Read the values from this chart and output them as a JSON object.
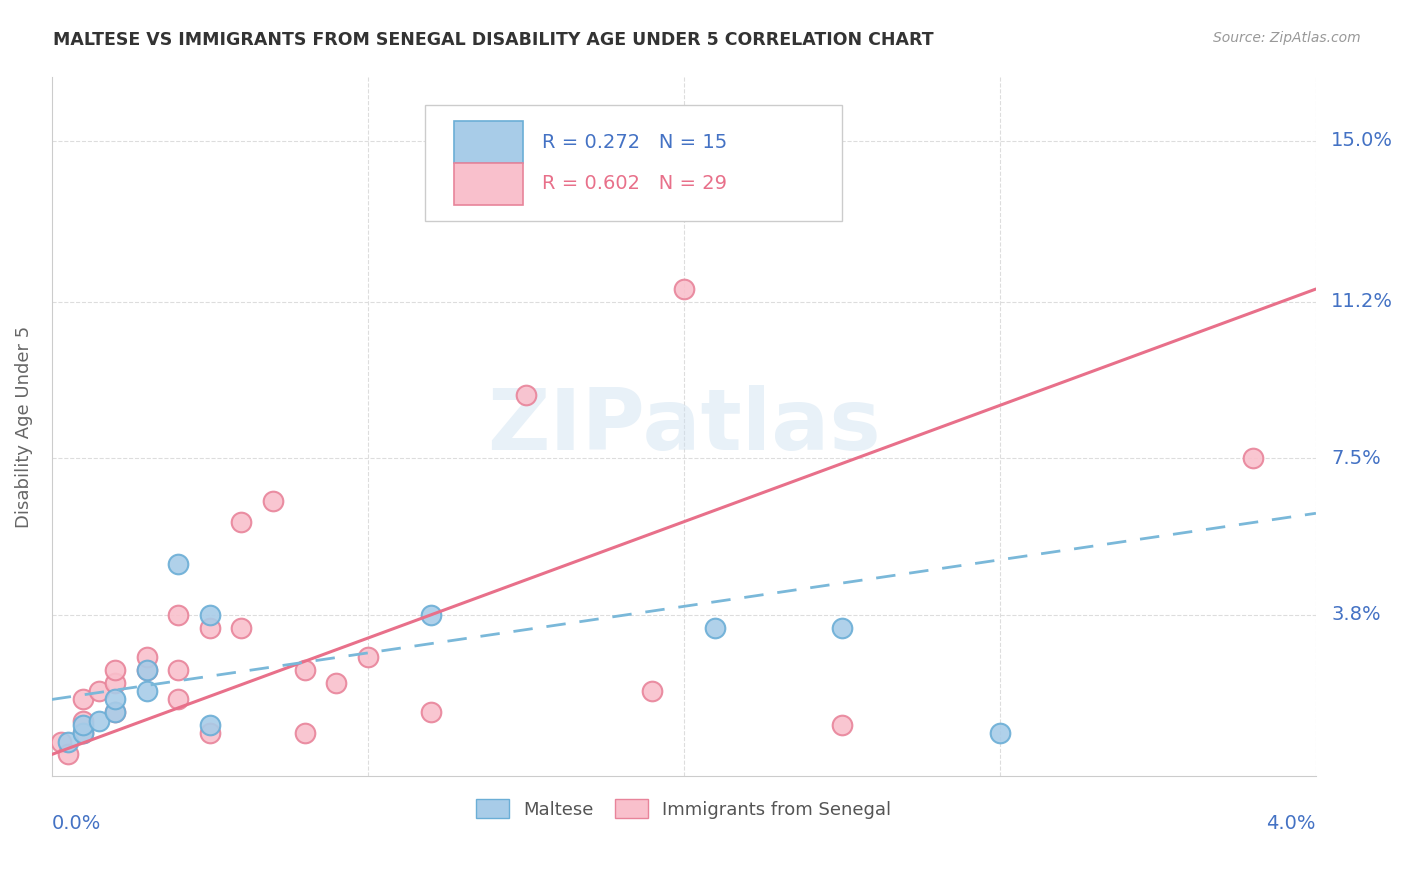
{
  "title": "MALTESE VS IMMIGRANTS FROM SENEGAL DISABILITY AGE UNDER 5 CORRELATION CHART",
  "source": "Source: ZipAtlas.com",
  "ylabel": "Disability Age Under 5",
  "ytick_labels": [
    "3.8%",
    "7.5%",
    "11.2%",
    "15.0%"
  ],
  "ytick_values": [
    0.038,
    0.075,
    0.112,
    0.15
  ],
  "xlim": [
    0.0,
    0.04
  ],
  "ylim": [
    0.0,
    0.165
  ],
  "maltese_scatter_color_face": "#a8cce8",
  "maltese_scatter_color_edge": "#6baed6",
  "senegal_scatter_color_face": "#f9c0cc",
  "senegal_scatter_color_edge": "#e8849a",
  "maltese_line_color": "#7ab8d9",
  "senegal_line_color": "#e8708a",
  "watermark": "ZIPatlas",
  "grid_color": "#dddddd",
  "title_color": "#333333",
  "label_color": "#4472c4",
  "source_color": "#999999",
  "legend_R_maltese": "R = 0.272",
  "legend_N_maltese": "N = 15",
  "legend_R_senegal": "R = 0.602",
  "legend_N_senegal": "N = 29",
  "maltese_x": [
    0.0005,
    0.001,
    0.001,
    0.0015,
    0.002,
    0.002,
    0.003,
    0.003,
    0.004,
    0.005,
    0.005,
    0.012,
    0.021,
    0.025,
    0.03
  ],
  "maltese_y": [
    0.008,
    0.01,
    0.012,
    0.013,
    0.015,
    0.018,
    0.02,
    0.025,
    0.05,
    0.038,
    0.012,
    0.038,
    0.035,
    0.035,
    0.01
  ],
  "senegal_x": [
    0.0003,
    0.0005,
    0.001,
    0.001,
    0.001,
    0.0015,
    0.002,
    0.002,
    0.002,
    0.003,
    0.003,
    0.004,
    0.004,
    0.004,
    0.005,
    0.005,
    0.006,
    0.006,
    0.007,
    0.008,
    0.008,
    0.009,
    0.01,
    0.012,
    0.015,
    0.019,
    0.02,
    0.025,
    0.038
  ],
  "senegal_y": [
    0.008,
    0.005,
    0.01,
    0.013,
    0.018,
    0.02,
    0.015,
    0.022,
    0.025,
    0.025,
    0.028,
    0.018,
    0.025,
    0.038,
    0.01,
    0.035,
    0.035,
    0.06,
    0.065,
    0.025,
    0.01,
    0.022,
    0.028,
    0.015,
    0.09,
    0.02,
    0.115,
    0.012,
    0.075
  ],
  "senegal_line_x0": 0.0,
  "senegal_line_y0": 0.005,
  "senegal_line_x1": 0.04,
  "senegal_line_y1": 0.115,
  "maltese_line_x0": 0.0,
  "maltese_line_y0": 0.018,
  "maltese_line_x1": 0.04,
  "maltese_line_y1": 0.062
}
